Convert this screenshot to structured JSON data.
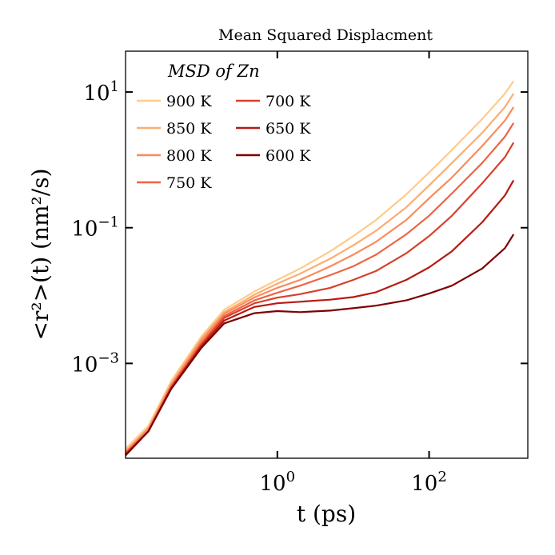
{
  "chart_data": {
    "type": "line",
    "title": "Mean Squared Displacment",
    "xlabel": "t (ps)",
    "ylabel": "<r²>(t) (nm²/s)",
    "xscale": "log",
    "yscale": "log",
    "xlim": [
      0.01,
      2000
    ],
    "ylim": [
      4e-05,
      40
    ],
    "grid": false,
    "legend_title": "MSD of Zn",
    "legend_placement": "top-left",
    "x_ticks": [
      {
        "base": "10",
        "exp": "0",
        "value": 1
      },
      {
        "base": "10",
        "exp": "2",
        "value": 100
      }
    ],
    "y_ticks": [
      {
        "base": "10",
        "exp": "1",
        "value": 10
      },
      {
        "base": "10",
        "exp": "−1",
        "value": 0.1
      },
      {
        "base": "10",
        "exp": "−3",
        "value": 0.001
      }
    ],
    "series": [
      {
        "name": "900 K",
        "color": "#fdcc8a",
        "x": [
          0.01,
          0.02,
          0.04,
          0.1,
          0.2,
          0.5,
          1,
          2,
          5,
          10,
          20,
          50,
          100,
          200,
          500,
          1000,
          1300
        ],
        "y": [
          5.5e-05,
          0.00012,
          0.00055,
          0.0025,
          0.0062,
          0.0115,
          0.017,
          0.025,
          0.045,
          0.075,
          0.13,
          0.31,
          0.65,
          1.4,
          4.0,
          9.5,
          14.5
        ]
      },
      {
        "name": "850 K",
        "color": "#fdad70",
        "x": [
          0.01,
          0.02,
          0.04,
          0.1,
          0.2,
          0.5,
          1,
          2,
          5,
          10,
          20,
          50,
          100,
          200,
          500,
          1000,
          1300
        ],
        "y": [
          5e-05,
          0.00011,
          0.0005,
          0.0023,
          0.0057,
          0.0103,
          0.015,
          0.021,
          0.035,
          0.055,
          0.09,
          0.2,
          0.42,
          0.9,
          2.5,
          6.0,
          9.5
        ]
      },
      {
        "name": "800 K",
        "color": "#f98b5c",
        "x": [
          0.01,
          0.02,
          0.04,
          0.1,
          0.2,
          0.5,
          1,
          2,
          5,
          10,
          20,
          50,
          100,
          200,
          500,
          1000,
          1300
        ],
        "y": [
          5e-05,
          0.00011,
          0.00048,
          0.0022,
          0.0054,
          0.0094,
          0.013,
          0.017,
          0.027,
          0.04,
          0.062,
          0.13,
          0.27,
          0.55,
          1.6,
          3.8,
          6.0
        ]
      },
      {
        "name": "750 K",
        "color": "#ee6445",
        "x": [
          0.01,
          0.02,
          0.04,
          0.1,
          0.2,
          0.5,
          1,
          2,
          5,
          10,
          20,
          50,
          100,
          200,
          500,
          1000,
          1300
        ],
        "y": [
          4.8e-05,
          0.0001,
          0.00046,
          0.002,
          0.005,
          0.0085,
          0.011,
          0.014,
          0.02,
          0.027,
          0.04,
          0.08,
          0.15,
          0.32,
          0.9,
          2.2,
          3.5
        ]
      },
      {
        "name": "700 K",
        "color": "#d8402b",
        "x": [
          0.01,
          0.02,
          0.04,
          0.1,
          0.2,
          0.5,
          1,
          2,
          5,
          10,
          20,
          50,
          100,
          200,
          500,
          1000,
          1300
        ],
        "y": [
          4.6e-05,
          0.0001,
          0.00044,
          0.0019,
          0.0047,
          0.0077,
          0.0093,
          0.0105,
          0.013,
          0.017,
          0.023,
          0.042,
          0.075,
          0.15,
          0.45,
          1.1,
          1.8
        ]
      },
      {
        "name": "650 K",
        "color": "#b51b12",
        "x": [
          0.01,
          0.02,
          0.04,
          0.1,
          0.2,
          0.5,
          1,
          2,
          5,
          10,
          20,
          50,
          100,
          200,
          500,
          1000,
          1300
        ],
        "y": [
          4.5e-05,
          0.0001,
          0.00043,
          0.0018,
          0.0043,
          0.0068,
          0.0077,
          0.0081,
          0.0087,
          0.0095,
          0.0112,
          0.017,
          0.026,
          0.045,
          0.12,
          0.3,
          0.5
        ]
      },
      {
        "name": "600 K",
        "color": "#7f0000",
        "x": [
          0.01,
          0.02,
          0.04,
          0.1,
          0.2,
          0.5,
          1,
          2,
          5,
          10,
          20,
          50,
          100,
          200,
          500,
          1000,
          1300
        ],
        "y": [
          4.4e-05,
          0.0001,
          0.00042,
          0.0017,
          0.0039,
          0.0055,
          0.0059,
          0.0057,
          0.006,
          0.0065,
          0.0071,
          0.0085,
          0.0107,
          0.014,
          0.025,
          0.05,
          0.08
        ]
      }
    ]
  }
}
